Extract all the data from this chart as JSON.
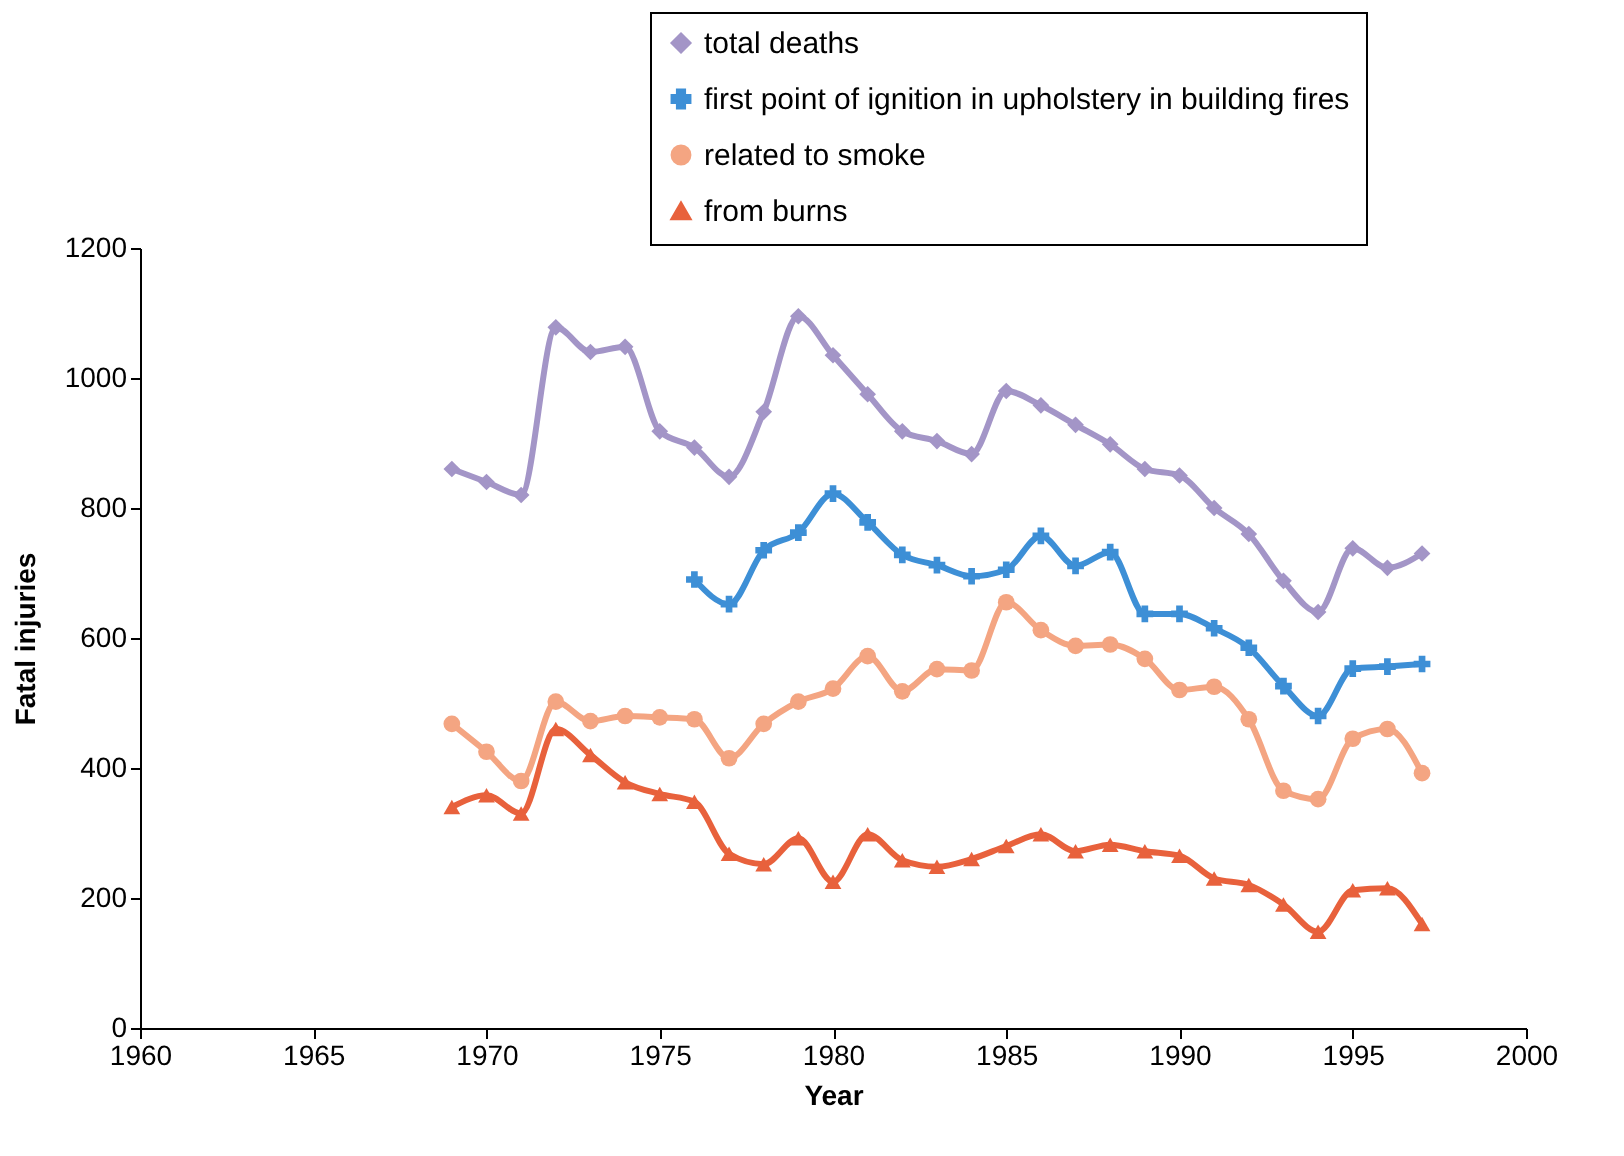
{
  "chart_data": {
    "type": "line",
    "xlabel": "Year",
    "ylabel": "Fatal injuries",
    "xlim": [
      1960,
      2000
    ],
    "xticks": [
      1960,
      1965,
      1970,
      1975,
      1980,
      1985,
      1990,
      1995,
      2000
    ],
    "ylim": [
      0,
      1200
    ],
    "yticks": [
      0,
      200,
      400,
      600,
      800,
      1000,
      1200
    ],
    "grid": false,
    "legend": "top right",
    "line_style": "solid",
    "series": [
      {
        "name": "total deaths",
        "color": "#a395c7",
        "marker": "diamond",
        "x": [
          1969,
          1970,
          1971,
          1972,
          1973,
          1974,
          1975,
          1976,
          1977,
          1978,
          1979,
          1980,
          1981,
          1982,
          1983,
          1984,
          1985,
          1986,
          1987,
          1988,
          1989,
          1990,
          1991,
          1992,
          1993,
          1994,
          1995,
          1996,
          1997
        ],
        "values": [
          860,
          840,
          820,
          1078,
          1040,
          1048,
          918,
          893,
          848,
          948,
          1095,
          1035,
          975,
          918,
          903,
          883,
          980,
          958,
          928,
          898,
          860,
          850,
          800,
          760,
          688,
          640,
          738,
          708,
          730
        ]
      },
      {
        "name": "first point of ignition in upholstery in building fires",
        "color": "#3d8fd6",
        "marker": "cross",
        "x": [
          1976,
          1977,
          1978,
          1979,
          1980,
          1981,
          1982,
          1983,
          1984,
          1985,
          1986,
          1987,
          1988,
          1989,
          1990,
          1991,
          1992,
          1993,
          1994,
          1995,
          1996,
          1997
        ],
        "values": [
          690,
          652,
          735,
          762,
          822,
          778,
          728,
          712,
          695,
          705,
          757,
          711,
          732,
          637,
          637,
          615,
          585,
          526,
          480,
          553,
          556,
          560
        ]
      },
      {
        "name": "related to smoke",
        "color": "#f4a582",
        "marker": "circle",
        "x": [
          1969,
          1970,
          1971,
          1972,
          1973,
          1974,
          1975,
          1976,
          1977,
          1978,
          1979,
          1980,
          1981,
          1982,
          1983,
          1984,
          1985,
          1986,
          1987,
          1988,
          1989,
          1990,
          1991,
          1992,
          1993,
          1994,
          1995,
          1996,
          1997
        ],
        "values": [
          468,
          425,
          380,
          502,
          472,
          480,
          478,
          475,
          415,
          468,
          502,
          522,
          572,
          518,
          552,
          550,
          655,
          612,
          588,
          590,
          568,
          520,
          525,
          475,
          365,
          352,
          445,
          460,
          392
        ]
      },
      {
        "name": "from burns",
        "color": "#e8613c",
        "marker": "triangle",
        "x": [
          1969,
          1970,
          1971,
          1972,
          1973,
          1974,
          1975,
          1976,
          1977,
          1978,
          1979,
          1980,
          1981,
          1982,
          1983,
          1984,
          1985,
          1986,
          1987,
          1988,
          1989,
          1990,
          1991,
          1992,
          1993,
          1994,
          1995,
          1996,
          1997
        ],
        "values": [
          340,
          358,
          330,
          460,
          420,
          378,
          360,
          348,
          268,
          252,
          292,
          225,
          298,
          258,
          248,
          260,
          280,
          298,
          272,
          282,
          272,
          265,
          230,
          220,
          190,
          148,
          212,
          215,
          160
        ]
      }
    ]
  }
}
